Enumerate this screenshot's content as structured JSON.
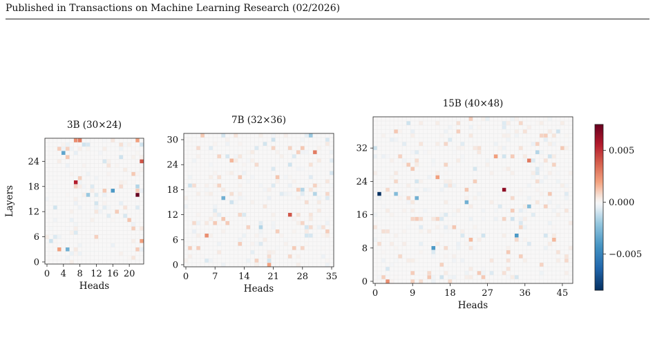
{
  "header": {
    "text": "Published in Transactions on Machine Learning Research (02/2026)"
  },
  "chart_data": [
    {
      "type": "heatmap",
      "title": "3B (30×24)",
      "xlabel": "Heads",
      "ylabel": "Layers",
      "rows": 30,
      "cols": 24,
      "xticks": [
        0,
        4,
        8,
        12,
        16,
        20
      ],
      "yticks": [
        0,
        6,
        12,
        18,
        24
      ],
      "notable_cells": [
        {
          "head": 22,
          "layer": 16,
          "value": 0.0075
        },
        {
          "head": 7,
          "layer": 19,
          "value": 0.0055
        },
        {
          "head": 23,
          "layer": 24,
          "value": 0.004
        },
        {
          "head": 8,
          "layer": 29,
          "value": 0.003
        },
        {
          "head": 7,
          "layer": 29,
          "value": 0.0025
        },
        {
          "head": 22,
          "layer": 29,
          "value": 0.002
        },
        {
          "head": 3,
          "layer": 3,
          "value": 0.002
        },
        {
          "head": 23,
          "layer": 5,
          "value": 0.002
        },
        {
          "head": 16,
          "layer": 17,
          "value": -0.004
        },
        {
          "head": 4,
          "layer": 26,
          "value": -0.0035
        },
        {
          "head": 5,
          "layer": 3,
          "value": -0.003
        },
        {
          "head": 10,
          "layer": 16,
          "value": -0.002
        },
        {
          "head": 22,
          "layer": 18,
          "value": -0.0015
        },
        {
          "head": 1,
          "layer": 5,
          "value": -0.001
        }
      ]
    },
    {
      "type": "heatmap",
      "title": "7B (32×36)",
      "xlabel": "Heads",
      "ylabel": "",
      "rows": 32,
      "cols": 36,
      "xticks": [
        0,
        7,
        14,
        21,
        28,
        35
      ],
      "yticks": [
        0,
        6,
        12,
        18,
        24,
        30
      ],
      "notable_cells": [
        {
          "head": 25,
          "layer": 12,
          "value": 0.004
        },
        {
          "head": 31,
          "layer": 27,
          "value": 0.003
        },
        {
          "head": 5,
          "layer": 7,
          "value": 0.0025
        },
        {
          "head": 20,
          "layer": 0,
          "value": 0.002
        },
        {
          "head": 11,
          "layer": 25,
          "value": 0.0015
        },
        {
          "head": 3,
          "layer": 4,
          "value": 0.001
        },
        {
          "head": 9,
          "layer": 16,
          "value": -0.003
        },
        {
          "head": 30,
          "layer": 31,
          "value": -0.002
        },
        {
          "head": 18,
          "layer": 9,
          "value": -0.0015
        },
        {
          "head": 28,
          "layer": 18,
          "value": -0.0015
        },
        {
          "head": 31,
          "layer": 17,
          "value": -0.0015
        },
        {
          "head": 1,
          "layer": 19,
          "value": -0.001
        }
      ]
    },
    {
      "type": "heatmap",
      "title": "15B (40×48)",
      "xlabel": "Heads",
      "ylabel": "",
      "rows": 40,
      "cols": 48,
      "xticks": [
        0,
        9,
        18,
        27,
        36,
        45
      ],
      "yticks": [
        0,
        8,
        16,
        24,
        32
      ],
      "notable_cells": [
        {
          "head": 31,
          "layer": 22,
          "value": 0.0065
        },
        {
          "head": 37,
          "layer": 29,
          "value": 0.003
        },
        {
          "head": 3,
          "layer": 0,
          "value": 0.0025
        },
        {
          "head": 15,
          "layer": 25,
          "value": 0.002
        },
        {
          "head": 29,
          "layer": 30,
          "value": 0.002
        },
        {
          "head": 43,
          "layer": 10,
          "value": 0.0015
        },
        {
          "head": 23,
          "layer": 10,
          "value": 0.0015
        },
        {
          "head": 1,
          "layer": 21,
          "value": -0.0085
        },
        {
          "head": 14,
          "layer": 8,
          "value": -0.004
        },
        {
          "head": 34,
          "layer": 11,
          "value": -0.004
        },
        {
          "head": 22,
          "layer": 19,
          "value": -0.003
        },
        {
          "head": 10,
          "layer": 20,
          "value": -0.003
        },
        {
          "head": 37,
          "layer": 18,
          "value": -0.0025
        },
        {
          "head": 5,
          "layer": 21,
          "value": -0.0025
        },
        {
          "head": 39,
          "layer": 31,
          "value": -0.0015
        }
      ]
    }
  ],
  "colorbar": {
    "colormap": "RdBu_r",
    "range": [
      -0.0085,
      0.0075
    ],
    "ticks": [
      {
        "value": 0.005,
        "label": "0.005"
      },
      {
        "value": 0.0,
        "label": "0.000"
      },
      {
        "value": -0.005,
        "label": "−0.005"
      }
    ]
  }
}
